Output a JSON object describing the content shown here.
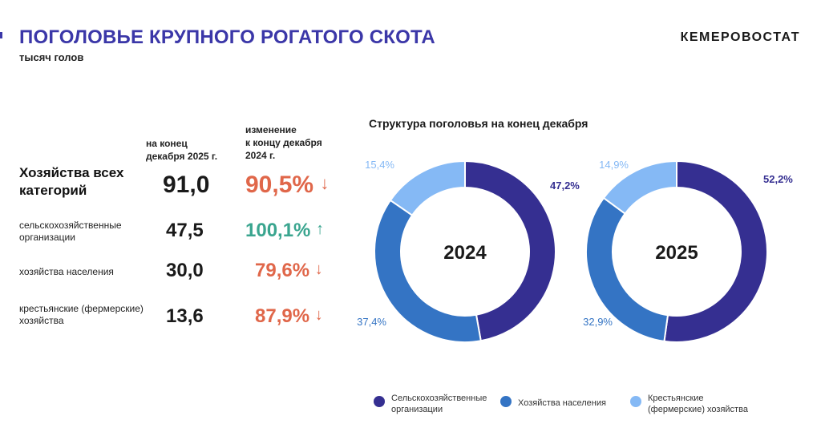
{
  "header": {
    "title": "ПОГОЛОВЬЕ КРУПНОГО РОГАТОГО СКОТА",
    "subtitle": "тысяч голов",
    "brand": "КЕМЕРОВОСТАТ"
  },
  "table": {
    "col_value_header_1": "на конец",
    "col_value_header_2": "декабря 2025 г.",
    "col_change_header_1": "изменение",
    "col_change_header_2": "к концу декабря",
    "col_change_header_3": "2024 г.",
    "rows": [
      {
        "label_1": "Хозяйства всех",
        "label_2": "категорий",
        "value": "91,0",
        "change": "90,5%",
        "arrow": "↓",
        "trend": "down"
      },
      {
        "label_1": "сельскохозяйственные",
        "label_2": "организации",
        "value": "47,5",
        "change": "100,1%",
        "arrow": "↑",
        "trend": "up"
      },
      {
        "label_1": "хозяйства населения",
        "label_2": "",
        "value": "30,0",
        "change": "79,6%",
        "arrow": "↓",
        "trend": "down"
      },
      {
        "label_1": "крестьянские (фермерские)",
        "label_2": "хозяйства",
        "value": "13,6",
        "change": "87,9%",
        "arrow": "↓",
        "trend": "down"
      }
    ]
  },
  "colors": {
    "title": "#3b37a8",
    "down": "#e0674a",
    "up": "#3aa58f",
    "series": [
      "#352f91",
      "#3474c4",
      "#85b9f5"
    ]
  },
  "chart_data": {
    "type": "pie",
    "title": "Структура поголовья на конец декабря",
    "series_names": [
      "Сельскохозяйственные организации",
      "Хозяйства населения",
      "Крестьянские (фермерские) хозяйства"
    ],
    "charts": [
      {
        "center_label": "2024",
        "values": [
          47.2,
          37.4,
          15.4
        ],
        "labels": [
          "47,2%",
          "37,4%",
          "15,4%"
        ]
      },
      {
        "center_label": "2025",
        "values": [
          52.2,
          32.9,
          14.9
        ],
        "labels": [
          "52,2%",
          "32,9%",
          "14,9%"
        ]
      }
    ],
    "legend": [
      {
        "line_1": "Сельскохозяйственные",
        "line_2": "организации"
      },
      {
        "line_1": "Хозяйства населения",
        "line_2": ""
      },
      {
        "line_1": "Крестьянские",
        "line_2": "(фермерские) хозяйства"
      }
    ],
    "legend_position": "bottom"
  }
}
